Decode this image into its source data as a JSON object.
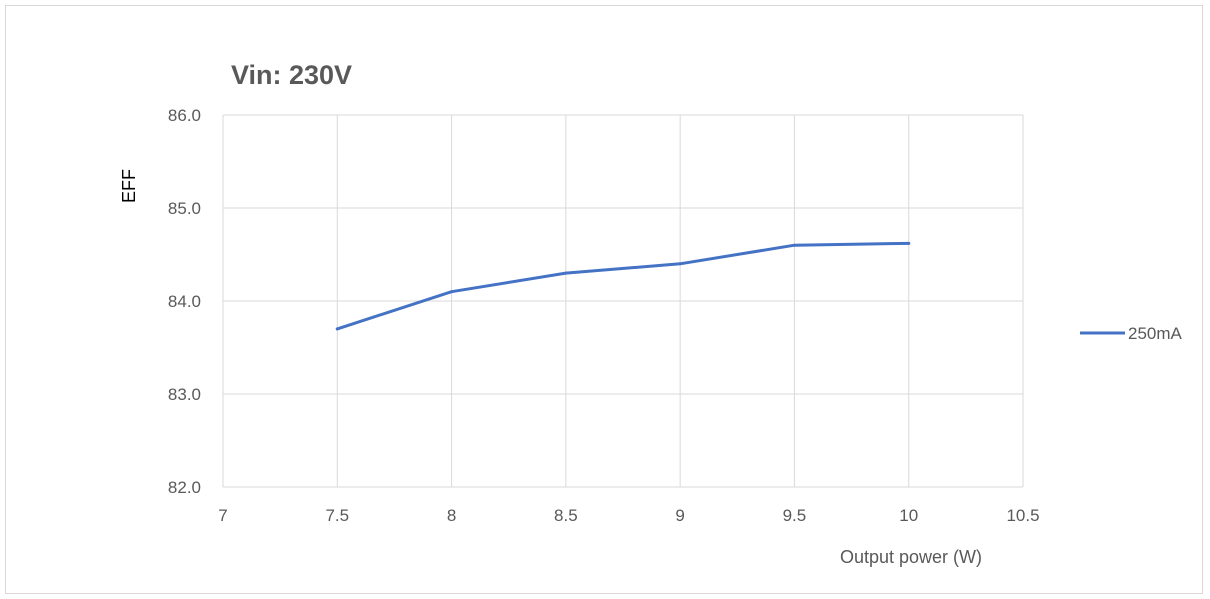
{
  "chart_data": {
    "type": "scatter",
    "title": "Vin: 230V",
    "xlabel": "Output power (W)",
    "ylabel": "EFF",
    "xlim": [
      7,
      10.5
    ],
    "ylim": [
      82.0,
      86.0
    ],
    "x_ticks": [
      7,
      7.5,
      8,
      8.5,
      9,
      9.5,
      10,
      10.5
    ],
    "y_ticks": [
      82.0,
      83.0,
      84.0,
      85.0,
      86.0
    ],
    "y_tick_format": "0.0",
    "grid": true,
    "legend_position": "right",
    "series": [
      {
        "name": "250mA",
        "color": "#4472c4",
        "x": [
          7.5,
          8,
          8.5,
          9,
          9.5,
          10
        ],
        "y": [
          83.7,
          84.1,
          84.3,
          84.4,
          84.6,
          84.62
        ]
      }
    ]
  }
}
